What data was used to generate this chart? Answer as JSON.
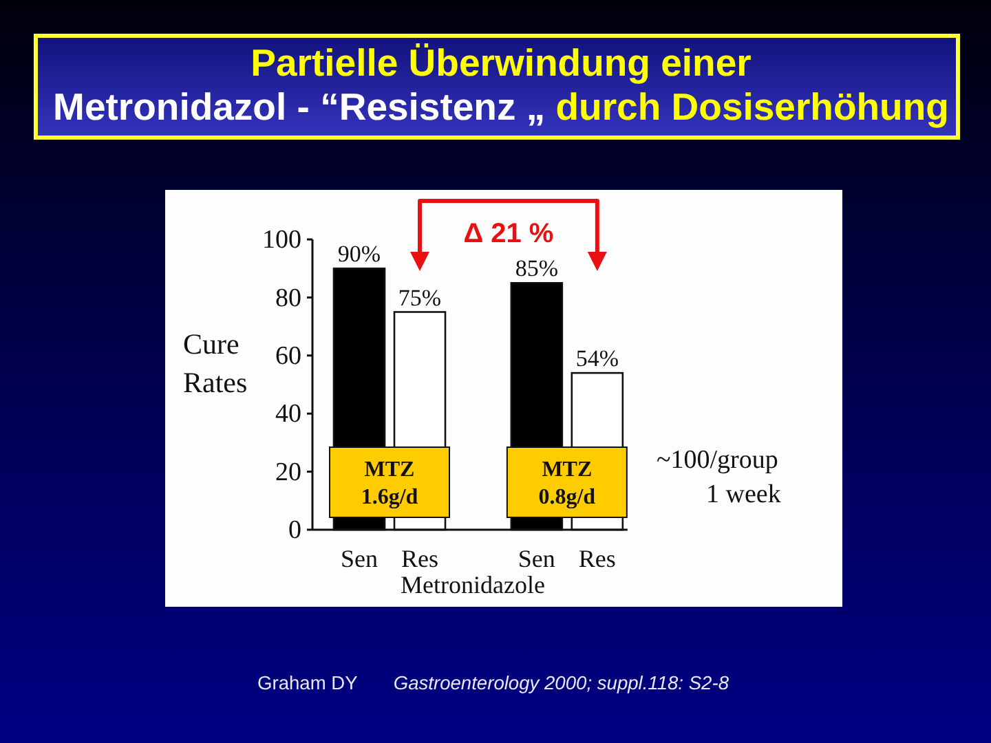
{
  "chart_data": {
    "type": "bar",
    "title": "Partielle Überwindung einer\nMetronidazol - “Resistenz „ durch Dosiserhöhung",
    "xlabel": "Metronidazole",
    "ylabel": "Cure\nRates",
    "categories": [
      "Sen",
      "Res",
      "Sen",
      "Res"
    ],
    "values": [
      90,
      75,
      85,
      54
    ],
    "colors": [
      "#000000",
      "#ffffff",
      "#000000",
      "#ffffff"
    ],
    "value_labels": [
      "90%",
      "75%",
      "85%",
      "54%"
    ],
    "ylim": [
      0,
      100
    ],
    "yticks": [
      0,
      20,
      40,
      60,
      80,
      100
    ],
    "annotations": [
      "Δ 21 %",
      "MTZ\n1.6g/d",
      "MTZ\n0.8g/d",
      "~100/group\n1 week",
      "Graham DY",
      "Gastroenterology 2000; suppl.118: S2-8"
    ]
  }
}
